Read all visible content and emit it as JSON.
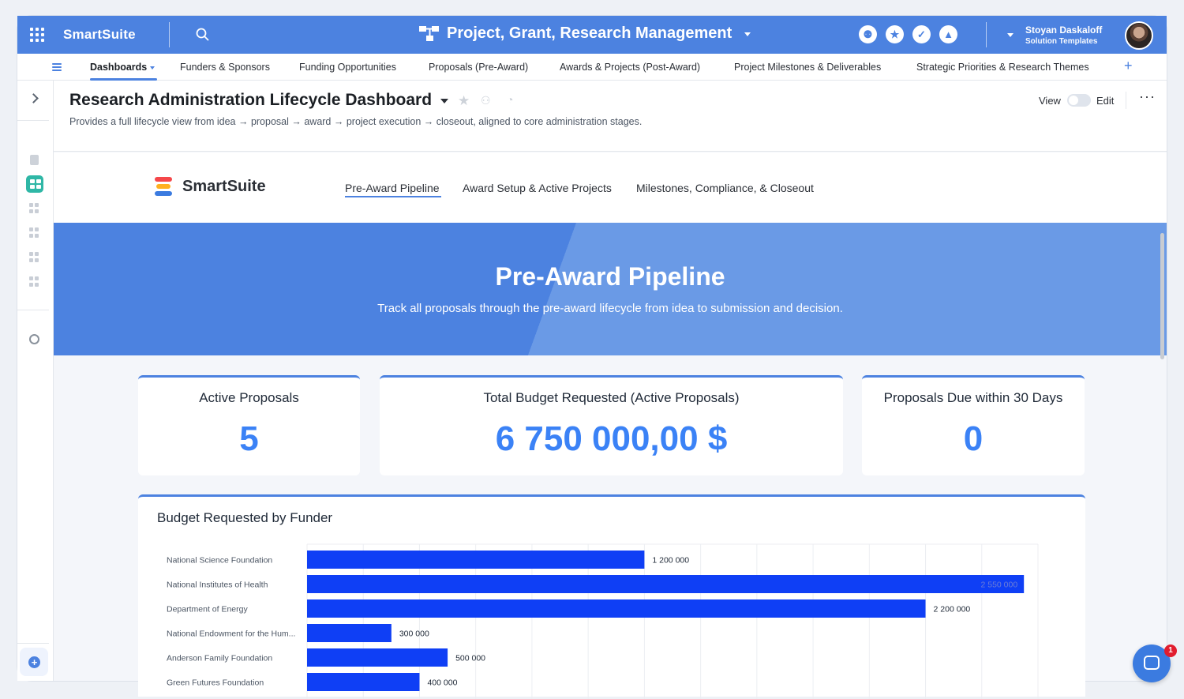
{
  "topbar": {
    "brand": "SmartSuite",
    "solution_title": "Project, Grant, Research Management",
    "user_name": "Stoyan Daskaloff",
    "user_sub": "Solution Templates"
  },
  "tabs": [
    {
      "label": "Dashboards"
    },
    {
      "label": "Funders & Sponsors"
    },
    {
      "label": "Funding Opportunities"
    },
    {
      "label": "Proposals (Pre-Award)"
    },
    {
      "label": "Awards & Projects (Post-Award)"
    },
    {
      "label": "Project Milestones & Deliverables"
    },
    {
      "label": "Strategic Priorities & Research Themes"
    }
  ],
  "tabs_plus": "+",
  "header": {
    "title": "Research Administration Lifecycle Dashboard",
    "description": "Provides a full lifecycle view from idea → proposal → award → project execution → closeout, aligned to core administration stages.",
    "view_label": "View",
    "edit_label": "Edit",
    "more": "···"
  },
  "dash_nav": {
    "logo_text": "SmartSuite",
    "items": [
      {
        "label": "Pre-Award Pipeline"
      },
      {
        "label": "Award Setup & Active Projects"
      },
      {
        "label": "Milestones, Compliance, & Closeout"
      }
    ]
  },
  "hero": {
    "title": "Pre-Award Pipeline",
    "subtitle": "Track all proposals through the pre-award lifecycle from idea to submission and decision."
  },
  "stats": [
    {
      "label": "Active Proposals",
      "value": "5"
    },
    {
      "label": "Total Budget Requested (Active Proposals)",
      "value": "6 750 000,00 $"
    },
    {
      "label": "Proposals Due within 30 Days",
      "value": "0"
    }
  ],
  "chat": {
    "badge": "1"
  },
  "colors": {
    "accent": "#4c82e0",
    "bar": "#0f3ff5",
    "stat_value": "#3b82f6"
  },
  "chart_data": {
    "type": "bar",
    "orientation": "horizontal",
    "title": "Budget Requested by Funder",
    "categories": [
      "National Science Foundation",
      "National Institutes of Health",
      "Department of Energy",
      "National Endowment for the Hum...",
      "Anderson Family Foundation",
      "Green Futures Foundation"
    ],
    "values": [
      1200000,
      2550000,
      2200000,
      300000,
      500000,
      400000
    ],
    "value_labels": [
      "1 200 000",
      "2 550 000",
      "2 200 000",
      "300 000",
      "500 000",
      "400 000"
    ],
    "xlim": [
      0,
      2600000
    ],
    "grid": true,
    "legend": "none"
  }
}
